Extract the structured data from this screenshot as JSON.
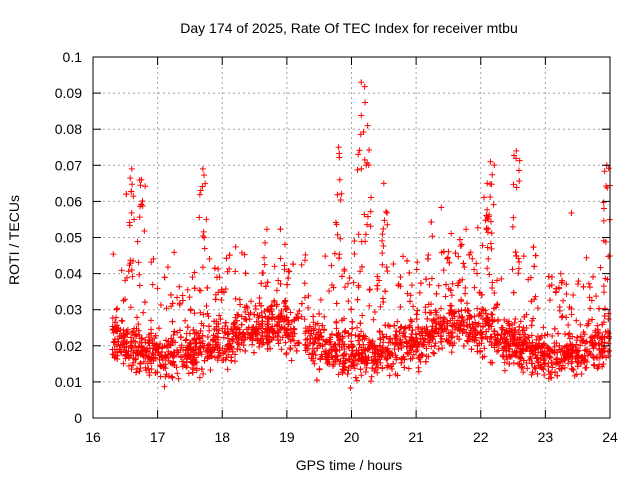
{
  "chart_data": {
    "type": "scatter",
    "title": "Day 174 of 2025, Rate Of TEC Index for receiver mtbu",
    "xlabel": "GPS time / hours",
    "ylabel": "ROTI / TECUs",
    "xlim": [
      16,
      24
    ],
    "ylim": [
      0,
      0.1
    ],
    "x_ticks": [
      "16",
      "17",
      "18",
      "19",
      "20",
      "21",
      "22",
      "23",
      "24"
    ],
    "y_ticks": [
      "0",
      "0.01",
      "0.02",
      "0.03",
      "0.04",
      "0.05",
      "0.06",
      "0.07",
      "0.08",
      "0.09",
      "0.1"
    ],
    "grid": true,
    "marker": "plus",
    "series_color": "#ff0000",
    "data_start_hour": 16.3,
    "data_end_hour": 24.0,
    "baseline_roti_range": [
      0.01,
      0.035
    ],
    "notable_peaks": [
      {
        "x": 16.6,
        "y": 0.069
      },
      {
        "x": 16.75,
        "y": 0.066
      },
      {
        "x": 17.7,
        "y": 0.069
      },
      {
        "x": 19.8,
        "y": 0.075
      },
      {
        "x": 20.15,
        "y": 0.093
      },
      {
        "x": 20.25,
        "y": 0.081
      },
      {
        "x": 20.5,
        "y": 0.065
      },
      {
        "x": 22.1,
        "y": 0.065
      },
      {
        "x": 22.15,
        "y": 0.071
      },
      {
        "x": 22.55,
        "y": 0.074
      },
      {
        "x": 23.95,
        "y": 0.07
      }
    ]
  }
}
